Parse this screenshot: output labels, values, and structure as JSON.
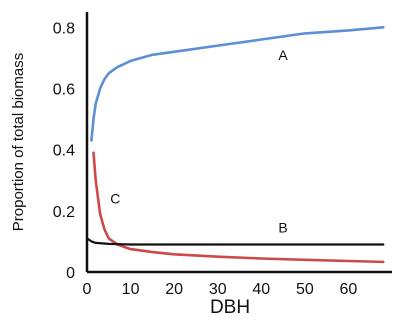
{
  "chart_data": {
    "type": "line",
    "title": "",
    "xlabel": "DBH",
    "ylabel": "Proportion of total biomass",
    "xlim": [
      0,
      70
    ],
    "ylim": [
      0,
      0.85
    ],
    "x_ticks": [
      {
        "value": 0,
        "label": "0"
      },
      {
        "value": 10,
        "label": "10"
      },
      {
        "value": 20,
        "label": "20"
      },
      {
        "value": 30,
        "label": "30"
      },
      {
        "value": 40,
        "label": "40"
      },
      {
        "value": 50,
        "label": "50"
      },
      {
        "value": 60,
        "label": "60"
      }
    ],
    "y_ticks": [
      {
        "value": 0,
        "label": "0"
      },
      {
        "value": 0.2,
        "label": "0.2"
      },
      {
        "value": 0.4,
        "label": "0.4"
      },
      {
        "value": 0.6,
        "label": "0.6"
      },
      {
        "value": 0.8,
        "label": "0.8"
      }
    ],
    "grid": false,
    "legend": "none",
    "series": [
      {
        "name": "A",
        "color": "#5b8fd6",
        "x": [
          1,
          1.5,
          2,
          3,
          4,
          5,
          7,
          10,
          15,
          20,
          30,
          40,
          50,
          60,
          68
        ],
        "y": [
          0.43,
          0.5,
          0.55,
          0.6,
          0.63,
          0.65,
          0.67,
          0.69,
          0.71,
          0.72,
          0.74,
          0.76,
          0.78,
          0.79,
          0.8
        ]
      },
      {
        "name": "C",
        "color": "#cc4a4a",
        "x": [
          1.5,
          2,
          3,
          4,
          5,
          7,
          10,
          15,
          20,
          30,
          40,
          50,
          60,
          68
        ],
        "y": [
          0.39,
          0.3,
          0.19,
          0.14,
          0.11,
          0.09,
          0.075,
          0.065,
          0.058,
          0.05,
          0.044,
          0.04,
          0.036,
          0.033
        ]
      },
      {
        "name": "B",
        "color": "#111111",
        "x": [
          0,
          0.5,
          1,
          2,
          5,
          10,
          20,
          30,
          40,
          50,
          60,
          68
        ],
        "y": [
          0.11,
          0.105,
          0.1,
          0.095,
          0.092,
          0.09,
          0.09,
          0.09,
          0.09,
          0.09,
          0.09,
          0.09
        ]
      }
    ],
    "annotations": [
      {
        "text": "A",
        "x": 45,
        "y": 0.71
      },
      {
        "text": "C",
        "x": 6.5,
        "y": 0.24
      },
      {
        "text": "B",
        "x": 45,
        "y": 0.145
      }
    ]
  }
}
